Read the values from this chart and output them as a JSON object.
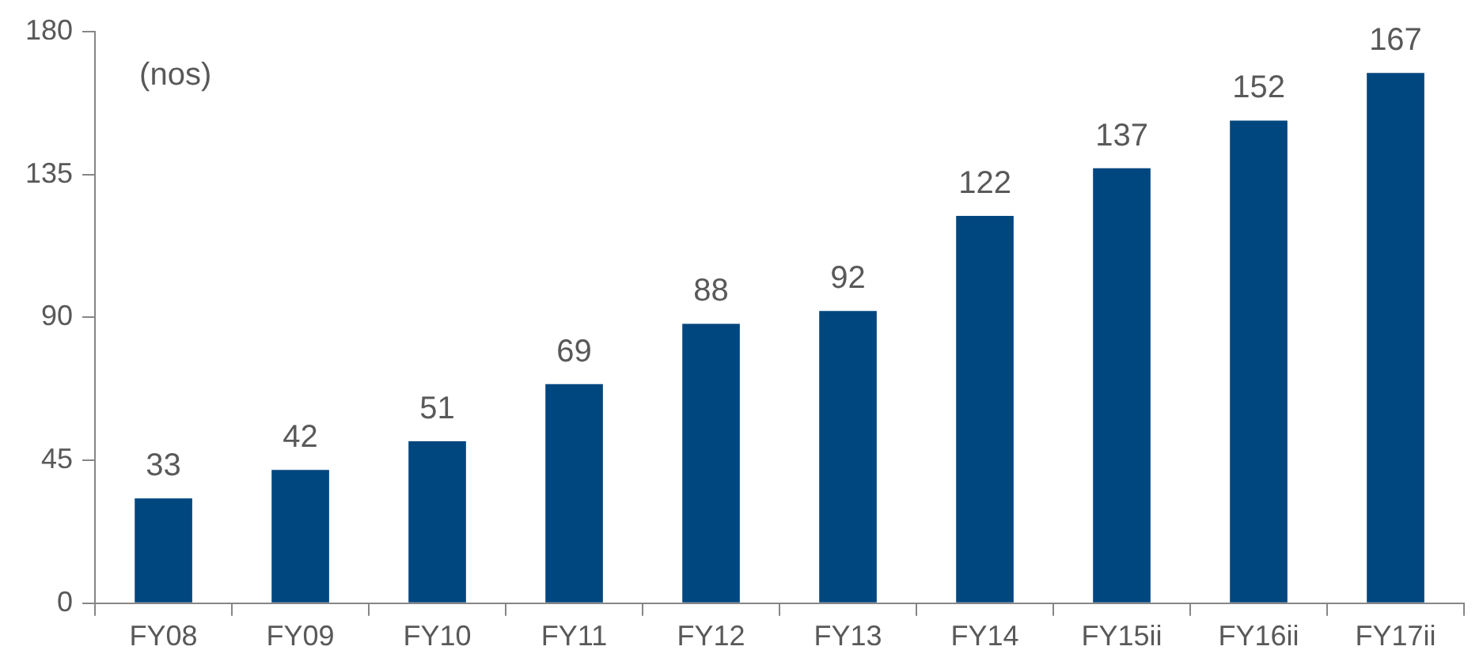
{
  "chart_data": {
    "type": "bar",
    "categories": [
      "FY08",
      "FY09",
      "FY10",
      "FY11",
      "FY12",
      "FY13",
      "FY14",
      "FY15ii",
      "FY16ii",
      "FY17ii"
    ],
    "values": [
      33,
      42,
      51,
      69,
      88,
      92,
      122,
      137,
      152,
      167
    ],
    "color": "#00467f",
    "ylim": [
      0,
      180
    ],
    "yticks": [
      0,
      45,
      90,
      135,
      180
    ],
    "grid": false,
    "legend": false,
    "data_labels": true,
    "annotations": [
      "(nos)"
    ]
  }
}
